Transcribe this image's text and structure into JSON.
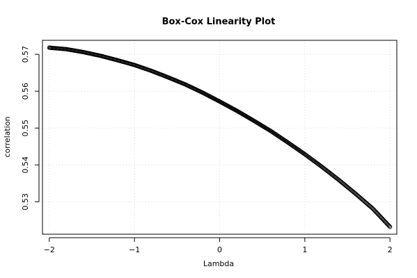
{
  "chart_data": {
    "type": "scatter",
    "title": "Box-Cox Linearity Plot",
    "xlabel": "Lambda",
    "ylabel": "correlation",
    "xlim": [
      -2.08,
      2.08
    ],
    "ylim": [
      0.5212,
      0.5738
    ],
    "x_ticks": [
      -2,
      -1,
      0,
      1,
      2
    ],
    "x_tick_labels": [
      "−2",
      "−1",
      "0",
      "1",
      "2"
    ],
    "y_ticks": [
      0.53,
      0.54,
      0.55,
      0.56,
      0.57
    ],
    "y_tick_labels": [
      "0.53",
      "0.54",
      "0.55",
      "0.56",
      "0.57"
    ],
    "grid": true,
    "marker": "open-circle",
    "series": [
      {
        "x": [
          -2.0,
          -1.8,
          -1.6,
          -1.4,
          -1.2,
          -1.0,
          -0.8,
          -0.6,
          -0.4,
          -0.2,
          0.0,
          0.2,
          0.4,
          0.6,
          0.8,
          1.0,
          1.2,
          1.4,
          1.6,
          1.8,
          2.0
        ],
        "y": [
          0.5718,
          0.5714,
          0.5706,
          0.5696,
          0.5684,
          0.5671,
          0.5655,
          0.5637,
          0.5618,
          0.5596,
          0.5572,
          0.5547,
          0.552,
          0.5492,
          0.5461,
          0.5429,
          0.5395,
          0.5359,
          0.5321,
          0.5281,
          0.5232
        ]
      }
    ]
  }
}
